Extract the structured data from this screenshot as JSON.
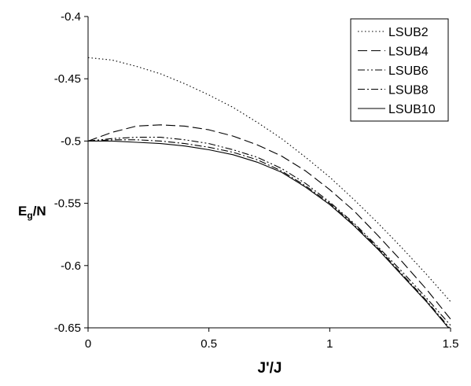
{
  "chart_data": {
    "type": "line",
    "xlabel": "J'/J",
    "ylabel": {
      "main": "E",
      "sub": "g",
      "rest": "/N"
    },
    "xlim": [
      0,
      1.5
    ],
    "ylim": [
      -0.65,
      -0.4
    ],
    "x_ticks": [
      "0",
      "0.5",
      "1",
      "1.5"
    ],
    "y_ticks": [
      "-0.4",
      "-0.45",
      "-0.5",
      "-0.55",
      "-0.6",
      "-0.65"
    ],
    "grid": false,
    "legend_position": "top-right",
    "series": [
      {
        "name": "LSUB2",
        "dash": "dotted",
        "x": [
          0,
          0.1,
          0.2,
          0.3,
          0.4,
          0.5,
          0.6,
          0.7,
          0.8,
          0.9,
          1.0,
          1.1,
          1.2,
          1.3,
          1.4,
          1.5
        ],
        "y": [
          -0.433,
          -0.435,
          -0.44,
          -0.446,
          -0.454,
          -0.463,
          -0.473,
          -0.485,
          -0.498,
          -0.513,
          -0.529,
          -0.547,
          -0.566,
          -0.586,
          -0.607,
          -0.629
        ]
      },
      {
        "name": "LSUB4",
        "dash": "long-dash",
        "x": [
          0,
          0.1,
          0.2,
          0.3,
          0.4,
          0.5,
          0.6,
          0.7,
          0.8,
          0.9,
          1.0,
          1.1,
          1.2,
          1.3,
          1.4,
          1.5
        ],
        "y": [
          -0.5,
          -0.493,
          -0.488,
          -0.487,
          -0.488,
          -0.491,
          -0.496,
          -0.503,
          -0.512,
          -0.524,
          -0.539,
          -0.556,
          -0.576,
          -0.597,
          -0.619,
          -0.643
        ]
      },
      {
        "name": "LSUB6",
        "dash": "dash-dot-dot",
        "x": [
          0,
          0.1,
          0.2,
          0.3,
          0.4,
          0.5,
          0.6,
          0.7,
          0.8,
          0.9,
          1.0,
          1.1,
          1.2,
          1.3,
          1.4,
          1.5
        ],
        "y": [
          -0.5,
          -0.498,
          -0.497,
          -0.497,
          -0.499,
          -0.502,
          -0.507,
          -0.513,
          -0.522,
          -0.534,
          -0.549,
          -0.566,
          -0.585,
          -0.605,
          -0.626,
          -0.648
        ]
      },
      {
        "name": "LSUB8",
        "dash": "dash-dot",
        "x": [
          0,
          0.1,
          0.2,
          0.3,
          0.4,
          0.5,
          0.6,
          0.7,
          0.8,
          0.9,
          1.0,
          1.1,
          1.2,
          1.3,
          1.4,
          1.5
        ],
        "y": [
          -0.5,
          -0.499,
          -0.499,
          -0.5,
          -0.502,
          -0.505,
          -0.509,
          -0.515,
          -0.524,
          -0.536,
          -0.55,
          -0.567,
          -0.586,
          -0.607,
          -0.628,
          -0.651
        ]
      },
      {
        "name": "LSUB10",
        "dash": "solid",
        "x": [
          0,
          0.1,
          0.2,
          0.3,
          0.4,
          0.5,
          0.6,
          0.7,
          0.8,
          0.9,
          1.0,
          1.1,
          1.2,
          1.3,
          1.4,
          1.5
        ],
        "y": [
          -0.5,
          -0.5,
          -0.501,
          -0.502,
          -0.504,
          -0.507,
          -0.511,
          -0.517,
          -0.525,
          -0.537,
          -0.551,
          -0.568,
          -0.587,
          -0.608,
          -0.629,
          -0.652
        ]
      }
    ]
  }
}
